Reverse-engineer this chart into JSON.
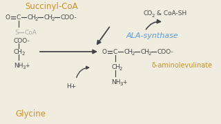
{
  "bg_color": "#f0ede0",
  "title_color": "#c8922a",
  "product_color": "#c8922a",
  "enzyme_color": "#5b9bd5",
  "struct_color": "#444444",
  "gray_color": "#aaaaaa",
  "succinyl_label": "Succinyl-CoA",
  "glycine_label": "Glycine",
  "enzyme_label": "ALA-synthase",
  "product_label": "δ-aminolevulinate",
  "byproduct_label": "CO₂ & CoA-SH",
  "h_label": "H+"
}
